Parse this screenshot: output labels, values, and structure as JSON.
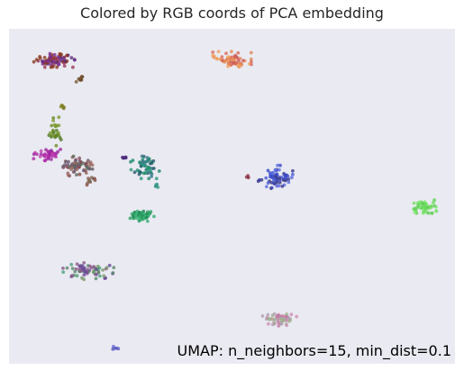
{
  "chart_data": {
    "type": "scatter",
    "title": "Colored by RGB coords of PCA embedding",
    "annotation": "UMAP: n_neighbors=15, min_dist=0.1",
    "xlabel": "",
    "ylabel": "",
    "xlim": [
      0,
      100
    ],
    "ylim": [
      0,
      100
    ],
    "grid": false,
    "axes_visible": false,
    "background_color": "#eaeaf2",
    "clusters": [
      {
        "x": 9,
        "y": 92,
        "sx": 2.2,
        "sy": 1.0,
        "n": 85,
        "colors": [
          "#7a2f8e",
          "#8b3a22",
          "#5e2d7a",
          "#9a3a55"
        ]
      },
      {
        "x": 15,
        "y": 86,
        "sx": 0.5,
        "sy": 0.5,
        "n": 8,
        "colors": [
          "#6b4a2a",
          "#7a5530"
        ]
      },
      {
        "x": 50,
        "y": 92,
        "sx": 2.0,
        "sy": 1.2,
        "n": 70,
        "colors": [
          "#d96a5a",
          "#e08a55",
          "#f0a060",
          "#c95a5a"
        ]
      },
      {
        "x": 11,
        "y": 78,
        "sx": 0.4,
        "sy": 0.4,
        "n": 6,
        "colors": [
          "#7a7a20",
          "#8a8a30"
        ]
      },
      {
        "x": 9.5,
        "y": 70,
        "sx": 0.7,
        "sy": 2.0,
        "n": 28,
        "colors": [
          "#6a8a20",
          "#4f7a25",
          "#7a9a30"
        ]
      },
      {
        "x": 7.5,
        "y": 63,
        "sx": 1.4,
        "sy": 0.9,
        "n": 45,
        "colors": [
          "#b02aa8",
          "#9a2aa0",
          "#c040b0"
        ]
      },
      {
        "x": 14,
        "y": 59,
        "sx": 1.8,
        "sy": 1.6,
        "n": 70,
        "colors": [
          "#8a4a55",
          "#6a5a70",
          "#9a6a60",
          "#5a6a5a"
        ]
      },
      {
        "x": 17.5,
        "y": 55,
        "sx": 0.8,
        "sy": 0.7,
        "n": 12,
        "colors": [
          "#7a6a55",
          "#8a5a50"
        ]
      },
      {
        "x": 25,
        "y": 62,
        "sx": 0.6,
        "sy": 0.3,
        "n": 6,
        "colors": [
          "#4a2a7a",
          "#5a3a8a"
        ]
      },
      {
        "x": 30,
        "y": 59,
        "sx": 1.5,
        "sy": 1.6,
        "n": 55,
        "colors": [
          "#1e8a6a",
          "#2a9a7a",
          "#255a6a",
          "#3a7a8a"
        ]
      },
      {
        "x": 32.5,
        "y": 53,
        "sx": 0.3,
        "sy": 0.4,
        "n": 5,
        "colors": [
          "#3a9a8a",
          "#2a8a7a"
        ]
      },
      {
        "x": 60,
        "y": 56,
        "sx": 1.8,
        "sy": 1.6,
        "n": 75,
        "colors": [
          "#4a5ad0",
          "#3a4ac0",
          "#5a6ae0",
          "#3a3a8a"
        ]
      },
      {
        "x": 53.5,
        "y": 56,
        "sx": 0.4,
        "sy": 0.2,
        "n": 4,
        "colors": [
          "#8a3a4a",
          "#a04a5a"
        ]
      },
      {
        "x": 29,
        "y": 44,
        "sx": 1.4,
        "sy": 0.8,
        "n": 55,
        "colors": [
          "#2aa060",
          "#35b070",
          "#208a55"
        ]
      },
      {
        "x": 94,
        "y": 47,
        "sx": 1.4,
        "sy": 1.0,
        "n": 55,
        "colors": [
          "#70e060",
          "#60d055",
          "#80e870"
        ]
      },
      {
        "x": 17,
        "y": 27,
        "sx": 3.2,
        "sy": 1.2,
        "n": 70,
        "colors": [
          "#6a4a9a",
          "#5a8a6a",
          "#7a9a6a",
          "#4aa07a",
          "#8a5a8a"
        ]
      },
      {
        "x": 61,
        "y": 12,
        "sx": 1.8,
        "sy": 0.9,
        "n": 60,
        "colors": [
          "#c07aa0",
          "#a0b090",
          "#b0a0b0",
          "#d090b0"
        ]
      },
      {
        "x": 23,
        "y": 3,
        "sx": 0.4,
        "sy": 0.3,
        "n": 5,
        "colors": [
          "#6a6ad0",
          "#5a5ac0"
        ]
      }
    ]
  }
}
